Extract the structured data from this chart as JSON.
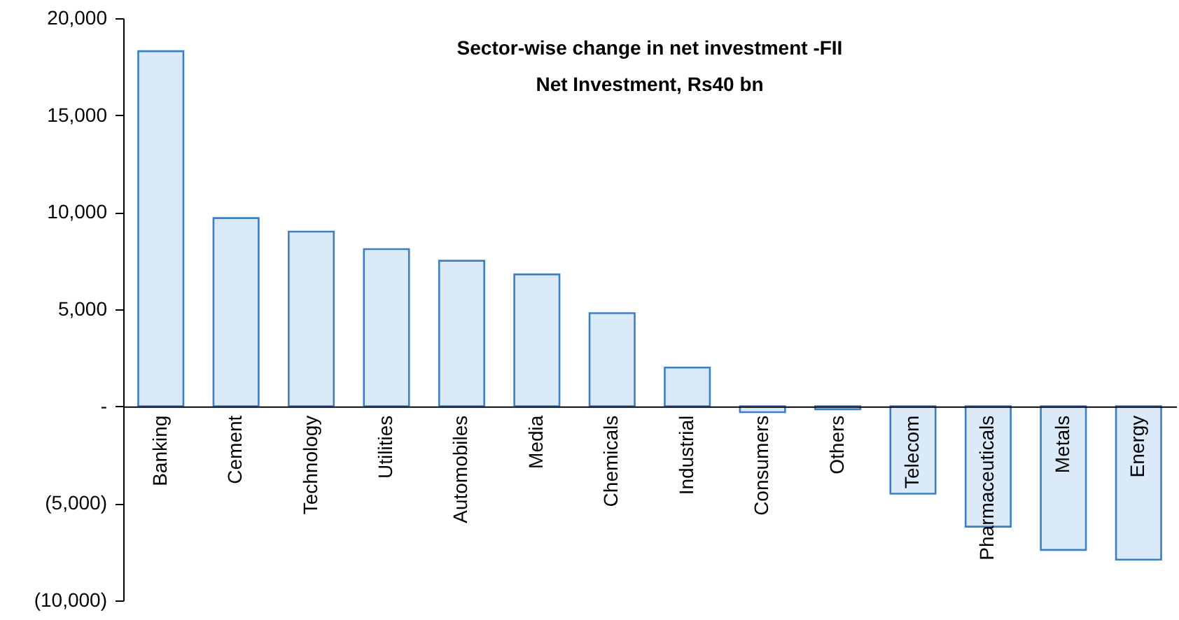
{
  "chart_data": {
    "type": "bar",
    "title": "Sector-wise change in net investment -FII",
    "subtitle": "Net Investment, Rs40 bn",
    "categories": [
      "Banking",
      "Cement",
      "Technology",
      "Utilities",
      "Automobiles",
      "Media",
      "Chemicals",
      "Industrial",
      "Consumers",
      "Others",
      "Telecom",
      "Pharmaceuticals",
      "Metals",
      "Energy"
    ],
    "values": [
      18300,
      9700,
      9000,
      8100,
      7500,
      6800,
      4800,
      2000,
      -300,
      -150,
      -4500,
      -6200,
      -7400,
      -7900
    ],
    "color": "#dbeaf8",
    "ylim": [
      -10000,
      20000
    ],
    "yticks": [
      {
        "value": -10000,
        "label": "(10,000)"
      },
      {
        "value": -5000,
        "label": "(5,000)"
      },
      {
        "value": 0,
        "label": "-"
      },
      {
        "value": 5000,
        "label": "5,000"
      },
      {
        "value": 10000,
        "label": "10,000"
      },
      {
        "value": 15000,
        "label": "15,000"
      },
      {
        "value": 20000,
        "label": "20,000"
      }
    ],
    "grid": false
  }
}
